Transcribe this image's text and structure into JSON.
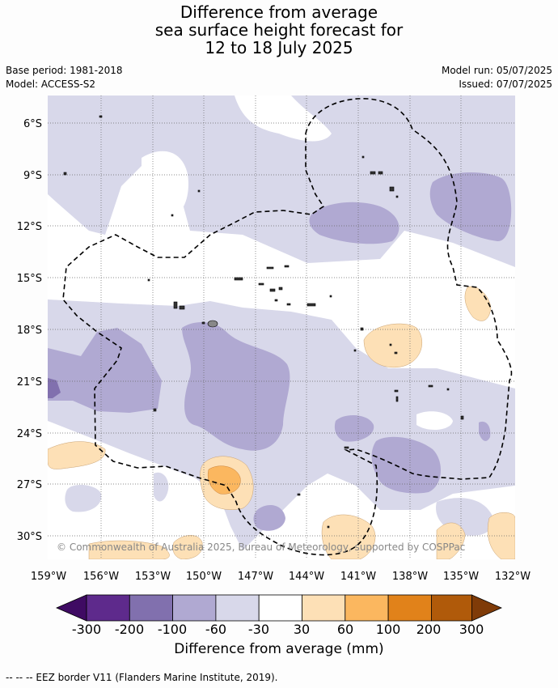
{
  "title_lines": [
    "Difference from average",
    "sea surface height forecast for",
    "12 to 18 July 2025"
  ],
  "base_period": "Base period: 1981-2018",
  "model": "Model: ACCESS-S2",
  "model_run": "Model run: 05/07/2025",
  "issued": "Issued: 07/07/2025",
  "lat_labels": [
    "6°S",
    "9°S",
    "12°S",
    "15°S",
    "18°S",
    "21°S",
    "24°S",
    "27°S",
    "30°S"
  ],
  "lon_labels": [
    "159°W",
    "156°W",
    "153°W",
    "150°W",
    "147°W",
    "144°W",
    "141°W",
    "138°W",
    "135°W",
    "132°W"
  ],
  "credit": "© Commonwealth of Australia 2025, Bureau of Meteorology, supported by COSPPac",
  "colorbar": {
    "title": "Difference from average (mm)",
    "tick_labels": [
      "-300",
      "-200",
      "-100",
      "-60",
      "-30",
      "30",
      "60",
      "100",
      "200",
      "300"
    ],
    "colors": [
      "#3f0b63",
      "#5e2a8c",
      "#8170ae",
      "#b0a9d2",
      "#d8d8ea",
      "#ffffff",
      "#fde0b6",
      "#fbb75f",
      "#e1821a",
      "#b05a0a",
      "#7f3b08"
    ]
  },
  "eez_legend": "-- -- -- EEZ border V11 (Flanders Marine Institute, 2019)."
}
